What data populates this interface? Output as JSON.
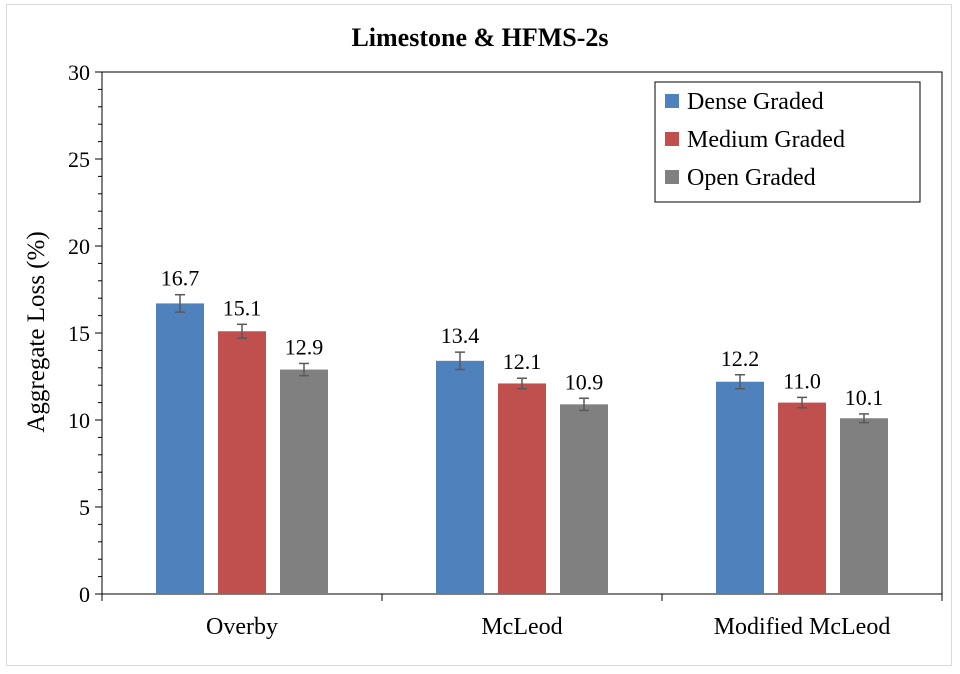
{
  "chart_data": {
    "type": "bar",
    "title": "Limestone & HFMS-2s",
    "xlabel": "",
    "ylabel": "Aggregate Loss (%)",
    "ylim": [
      0,
      30
    ],
    "yticks": [
      0,
      5,
      10,
      15,
      20,
      25,
      30
    ],
    "categories": [
      "Overby",
      "McLeod",
      "Modified McLeod"
    ],
    "series": [
      {
        "name": "Dense Graded",
        "color": "#4f81bd",
        "values": [
          16.7,
          13.4,
          12.2
        ],
        "value_labels": [
          "16.7",
          "13.4",
          "12.2"
        ],
        "error": [
          0.5,
          0.5,
          0.4
        ]
      },
      {
        "name": "Medium Graded",
        "color": "#c0504d",
        "values": [
          15.1,
          12.1,
          11.0
        ],
        "value_labels": [
          "15.1",
          "12.1",
          "11.0"
        ],
        "error": [
          0.4,
          0.3,
          0.3
        ]
      },
      {
        "name": "Open Graded",
        "color": "#808080",
        "values": [
          12.9,
          10.9,
          10.1
        ],
        "value_labels": [
          "12.9",
          "10.9",
          "10.1"
        ],
        "error": [
          0.35,
          0.35,
          0.25
        ]
      }
    ],
    "legend": "top-right",
    "error_bars": true,
    "grid": false
  }
}
